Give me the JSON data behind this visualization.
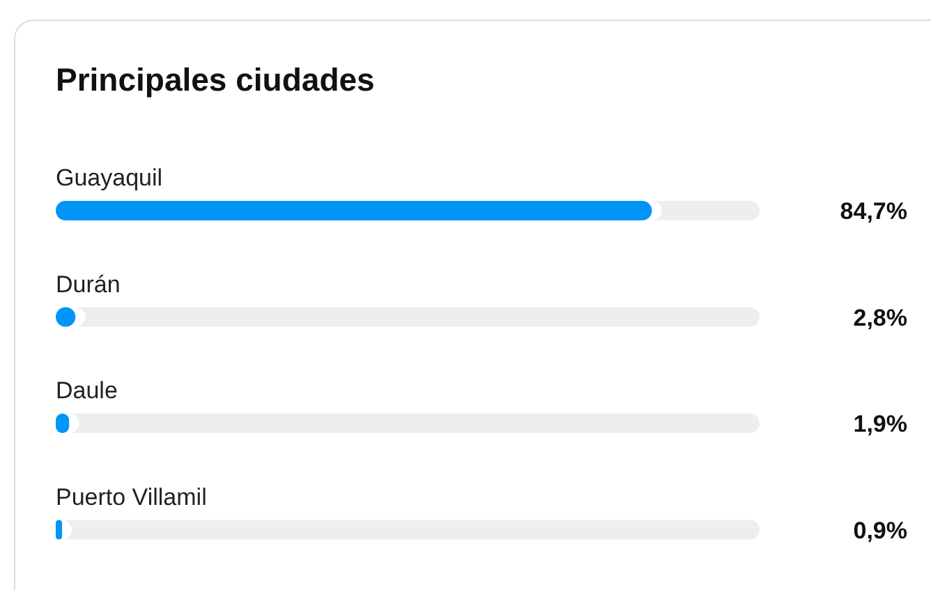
{
  "chart_data": {
    "type": "bar",
    "title": "Principales ciudades",
    "orientation": "horizontal",
    "categories": [
      "Guayaquil",
      "Durán",
      "Daule",
      "Puerto Villamil"
    ],
    "values": [
      84.7,
      2.8,
      1.9,
      0.9
    ],
    "value_labels": [
      "84,7%",
      "2,8%",
      "1,9%",
      "0,9%"
    ],
    "color": "#0095f6",
    "xlim": [
      0,
      100
    ],
    "tick_labels": false,
    "grid": false
  }
}
